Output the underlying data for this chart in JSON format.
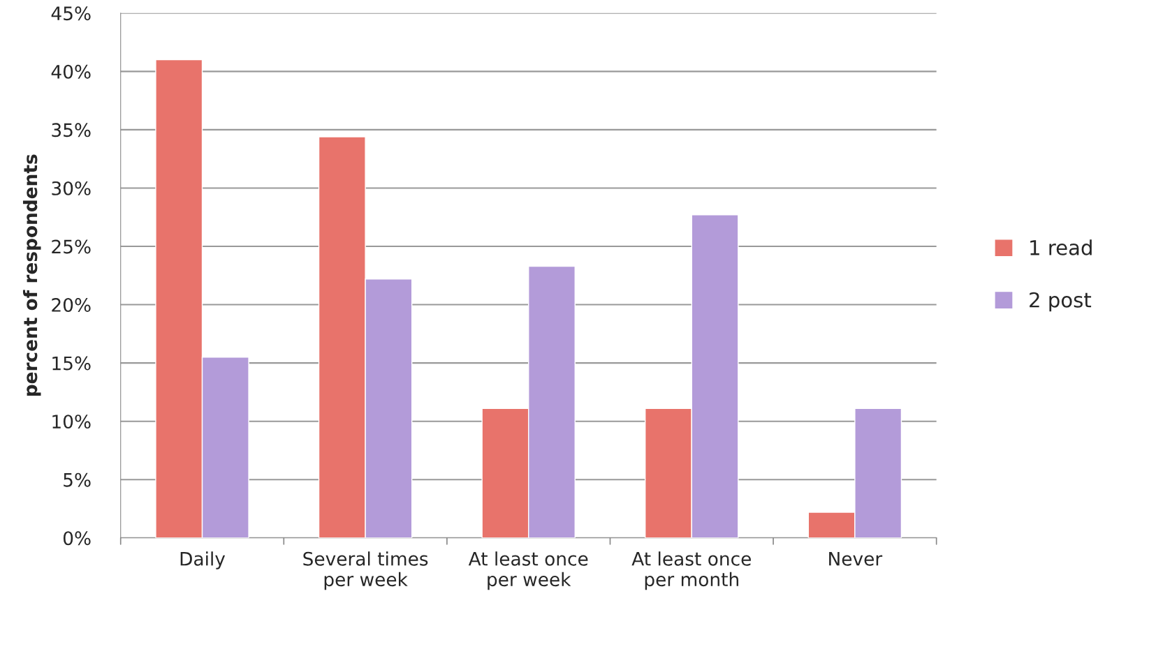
{
  "chart_data": {
    "type": "bar",
    "ylabel": "percent of respondents",
    "categories": [
      "Daily",
      "Several times\nper week",
      "At least once\nper week",
      "At least once\nper month",
      "Never"
    ],
    "series": [
      {
        "name": "1 read",
        "color": "#e8736b",
        "values": [
          41.0,
          34.4,
          11.1,
          11.1,
          2.2
        ]
      },
      {
        "name": "2 post",
        "color": "#b39bd9",
        "values": [
          15.5,
          22.2,
          23.3,
          27.7,
          11.1
        ]
      }
    ],
    "ylim": [
      0,
      45
    ],
    "yticks": [
      {
        "value": 0,
        "label": "0%"
      },
      {
        "value": 5,
        "label": "5%"
      },
      {
        "value": 10,
        "label": "10%"
      },
      {
        "value": 15,
        "label": "15%"
      },
      {
        "value": 20,
        "label": "20%"
      },
      {
        "value": 25,
        "label": "25%"
      },
      {
        "value": 30,
        "label": "30%"
      },
      {
        "value": 35,
        "label": "35%"
      },
      {
        "value": 40,
        "label": "40%"
      },
      {
        "value": 45,
        "label": "45%"
      }
    ],
    "grid": "y",
    "legend": "right"
  }
}
